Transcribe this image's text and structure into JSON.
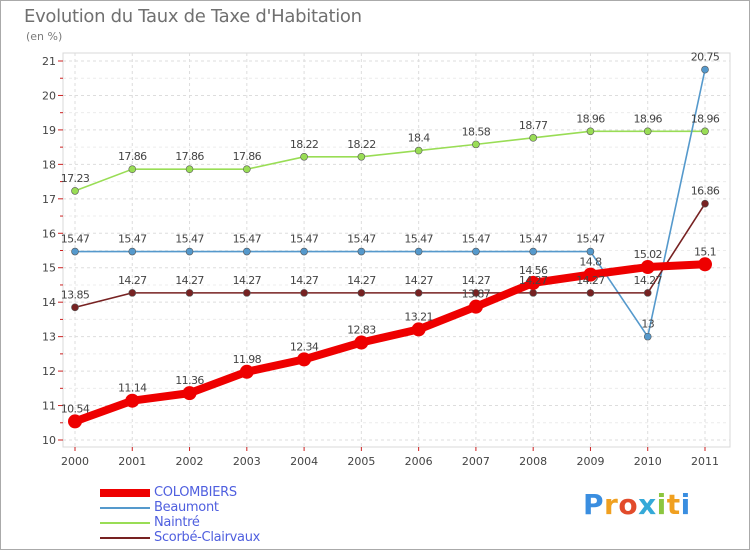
{
  "header": {
    "title": "Evolution du Taux de Taxe d'Habitation",
    "subtitle": "(en %)"
  },
  "logo": {
    "text": "Proxiti",
    "letters": [
      "P",
      "r",
      "o",
      "x",
      "i",
      "t",
      "i"
    ],
    "colors": [
      "#3a8ee0",
      "#f0a020",
      "#e24b2b",
      "#35a9d8",
      "#8cc63f",
      "#f0a020",
      "#3a8ee0"
    ]
  },
  "chart_data": {
    "type": "line",
    "title": "Evolution du Taux de Taxe d'Habitation",
    "subtitle": "(en %)",
    "x": [
      "2000",
      "2001",
      "2002",
      "2003",
      "2004",
      "2005",
      "2006",
      "2007",
      "2008",
      "2009",
      "2010",
      "2011"
    ],
    "ylim": [
      10,
      21
    ],
    "yticks": [
      "10",
      "11",
      "12",
      "13",
      "14",
      "15",
      "16",
      "17",
      "18",
      "19",
      "20",
      "21"
    ],
    "grid": true,
    "legend_position": "bottom-left",
    "series": [
      {
        "name": "Naintré",
        "color": "#99dd55",
        "values": [
          17.23,
          17.86,
          17.86,
          17.86,
          18.22,
          18.22,
          18.4,
          18.58,
          18.77,
          18.96,
          18.96,
          18.96
        ],
        "labels": [
          "17.23",
          "17.86",
          "17.86",
          "17.86",
          "18.22",
          "18.22",
          "18.4",
          "18.58",
          "18.77",
          "18.96",
          "18.96",
          "18.96"
        ]
      },
      {
        "name": "Beaumont",
        "color": "#5599cc",
        "values": [
          15.47,
          15.47,
          15.47,
          15.47,
          15.47,
          15.47,
          15.47,
          15.47,
          15.47,
          15.47,
          13,
          20.75
        ],
        "labels": [
          "15.47",
          "15.47",
          "15.47",
          "15.47",
          "15.47",
          "15.47",
          "15.47",
          "15.47",
          "15.47",
          "15.47",
          "13",
          "20.75"
        ]
      },
      {
        "name": "Scorbé-Clairvaux",
        "color": "#772222",
        "values": [
          13.85,
          14.27,
          14.27,
          14.27,
          14.27,
          14.27,
          14.27,
          14.27,
          14.27,
          14.27,
          14.27,
          16.86
        ],
        "labels": [
          "13.85",
          "14.27",
          "14.27",
          "14.27",
          "14.27",
          "14.27",
          "14.27",
          "14.27",
          "14.27",
          "14.27",
          "14.27",
          "16.86"
        ]
      },
      {
        "name": "COLOMBIERS",
        "color": "#ee0000",
        "values": [
          10.54,
          11.14,
          11.36,
          11.98,
          12.34,
          12.83,
          13.21,
          13.87,
          14.56,
          14.8,
          15.02,
          15.1
        ],
        "labels": [
          "10.54",
          "11.14",
          "11.36",
          "11.98",
          "12.34",
          "12.83",
          "13.21",
          "13.87",
          "14.56",
          "14.8",
          "15.02",
          "15.1"
        ]
      }
    ],
    "legend_order": [
      "COLOMBIERS",
      "Beaumont",
      "Naintré",
      "Scorbé-Clairvaux"
    ]
  }
}
